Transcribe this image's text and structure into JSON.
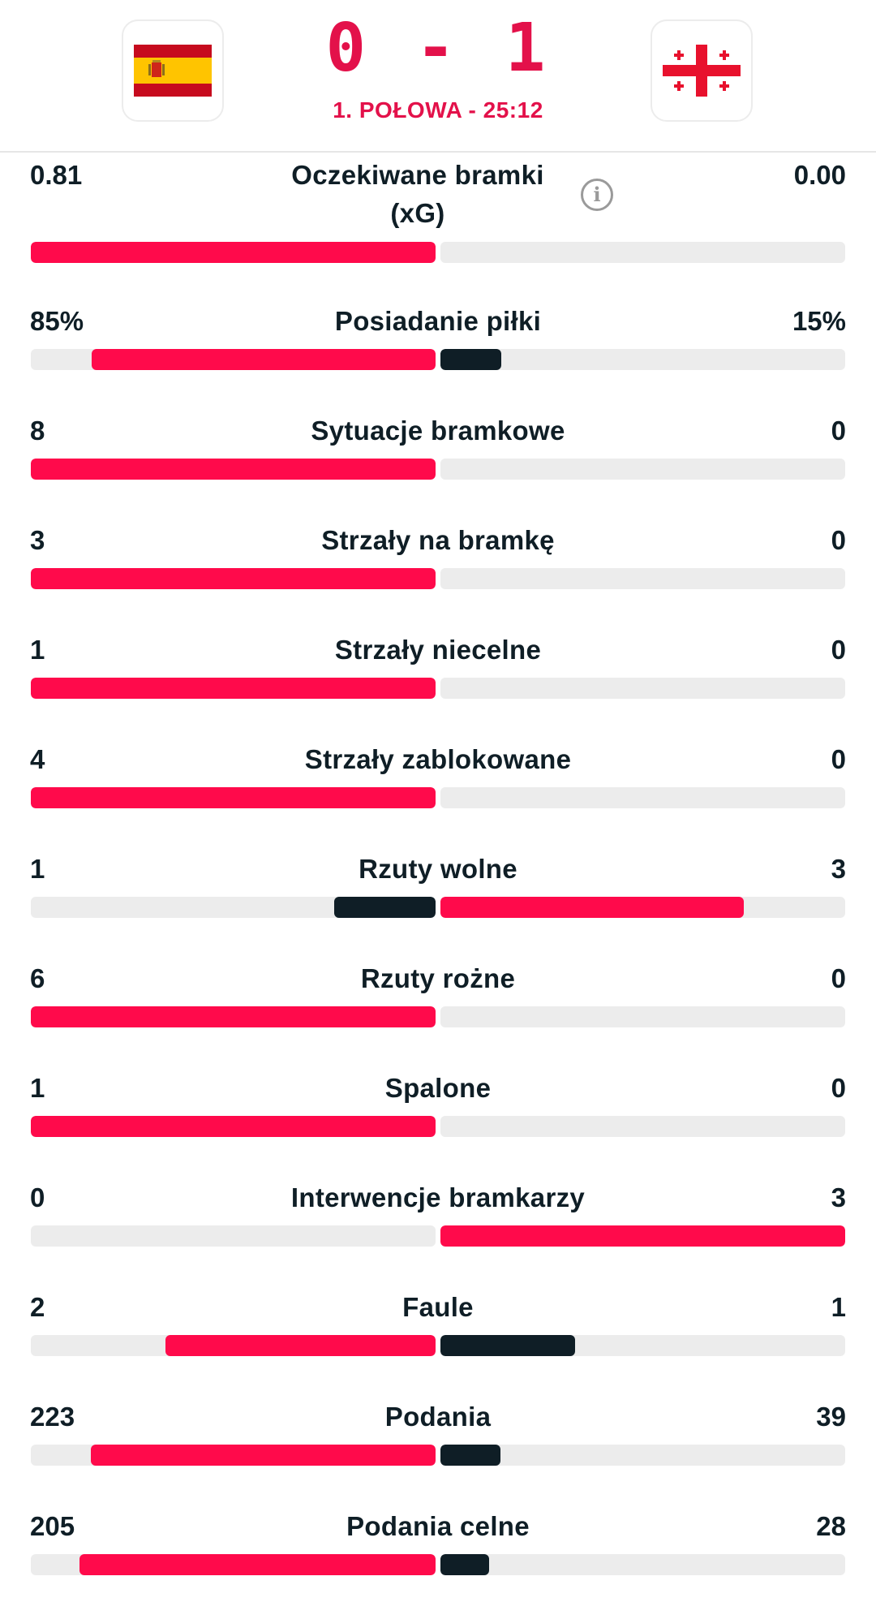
{
  "match": {
    "score": "0 - 1",
    "period": "1. POŁOWA - 25:12",
    "home_flag": "spain-flag",
    "away_flag": "georgia-flag"
  },
  "colors": {
    "leader": "#ff0a4b",
    "trailer": "#0f1e26",
    "track": "#ececec"
  },
  "stats": [
    {
      "name": "Oczekiwane bramki (xG)",
      "home": "0.81",
      "away": "0.00",
      "home_num": 0.81,
      "away_num": 0.0,
      "info_icon": "info-icon"
    },
    {
      "name": "Posiadanie piłki",
      "home": "85%",
      "away": "15%",
      "home_num": 85,
      "away_num": 15
    },
    {
      "name": "Sytuacje bramkowe",
      "home": "8",
      "away": "0",
      "home_num": 8,
      "away_num": 0
    },
    {
      "name": "Strzały na bramkę",
      "home": "3",
      "away": "0",
      "home_num": 3,
      "away_num": 0
    },
    {
      "name": "Strzały niecelne",
      "home": "1",
      "away": "0",
      "home_num": 1,
      "away_num": 0
    },
    {
      "name": "Strzały zablokowane",
      "home": "4",
      "away": "0",
      "home_num": 4,
      "away_num": 0
    },
    {
      "name": "Rzuty wolne",
      "home": "1",
      "away": "3",
      "home_num": 1,
      "away_num": 3
    },
    {
      "name": "Rzuty rożne",
      "home": "6",
      "away": "0",
      "home_num": 6,
      "away_num": 0
    },
    {
      "name": "Spalone",
      "home": "1",
      "away": "0",
      "home_num": 1,
      "away_num": 0
    },
    {
      "name": "Interwencje bramkarzy",
      "home": "0",
      "away": "3",
      "home_num": 0,
      "away_num": 3
    },
    {
      "name": "Faule",
      "home": "2",
      "away": "1",
      "home_num": 2,
      "away_num": 1
    },
    {
      "name": "Podania",
      "home": "223",
      "away": "39",
      "home_num": 223,
      "away_num": 39
    },
    {
      "name": "Podania celne",
      "home": "205",
      "away": "28",
      "home_num": 205,
      "away_num": 28
    }
  ]
}
